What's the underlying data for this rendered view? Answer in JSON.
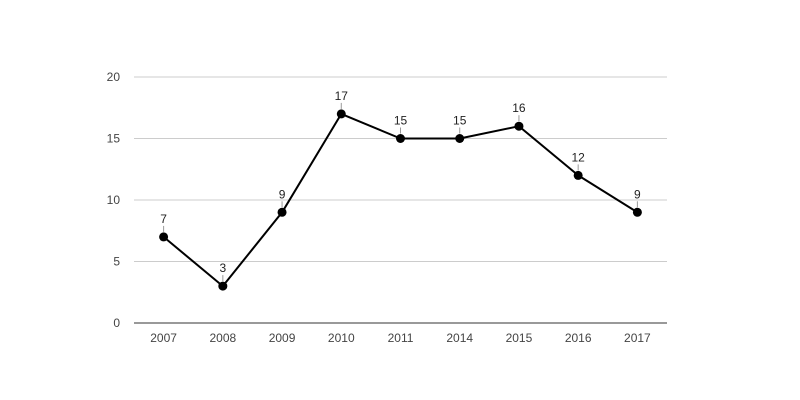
{
  "chart_data": {
    "type": "line",
    "categories": [
      "2007",
      "2008",
      "2009",
      "2010",
      "2011",
      "2014",
      "2015",
      "2016",
      "2017"
    ],
    "series": [
      {
        "values": [
          7,
          3,
          9,
          17,
          15,
          15,
          16,
          12,
          9
        ],
        "color": "#000000"
      }
    ],
    "ylim": [
      0,
      20
    ],
    "yticks": [
      0,
      5,
      10,
      15,
      20
    ],
    "grid": true,
    "gridColor": "#cccccc",
    "data_labels": true,
    "legend": "none"
  }
}
